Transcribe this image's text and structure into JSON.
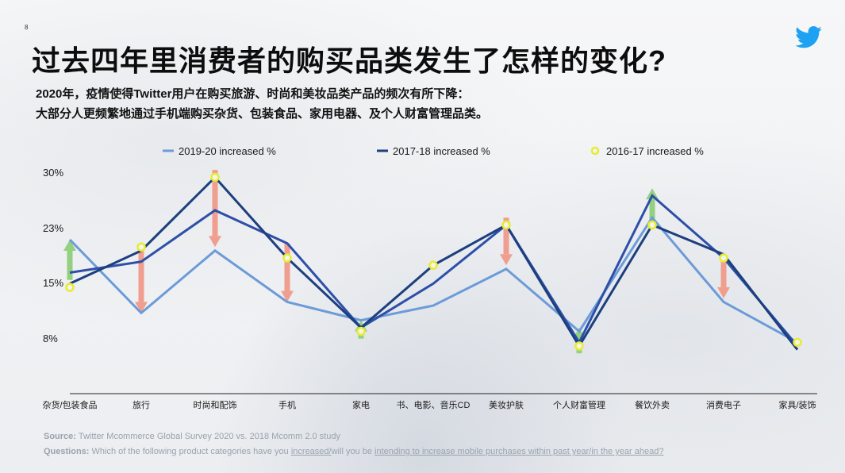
{
  "page_number": "8",
  "title": "过去四年里消费者的购买品类发生了怎样的变化?",
  "subtitle_lines": [
    "2020年，疫情使得Twitter用户在购买旅游、时尚和美妆品类产品的频次有所下降：",
    "大部分人更频繁地通过手机端购买杂货、包装食品、家用电器、及个人财富管理品类。"
  ],
  "logo_icon": "twitter-bird-icon",
  "colors": {
    "series_2019_20": "#6b9bd8",
    "series_2017_18": "#1c3f7e",
    "series_2016_17": "#e8ec2e",
    "mid_line": "#2d4fa8",
    "arrow_up": "#8fd07a",
    "arrow_down": "#f19a8a",
    "brand": "#1da1f2"
  },
  "chart_data": {
    "type": "line",
    "categories": [
      "杂货/包装食品",
      "旅行",
      "时尚和配饰",
      "手机",
      "家电",
      "书、电影、音乐CD",
      "美妆护肤",
      "个人财富管理",
      "餐饮外卖",
      "消费电子",
      "家具/装饰"
    ],
    "y_tick_labels": [
      "30%",
      "23%",
      "15%",
      "8%"
    ],
    "y_ticks": [
      30,
      23,
      15,
      8
    ],
    "ylim": [
      0,
      30
    ],
    "series": [
      {
        "name": "2019-20 increased %",
        "style": "line",
        "values": [
          21,
          11,
          19.5,
          12.5,
          10,
          12,
          17,
          8.5,
          24,
          12.5,
          7
        ]
      },
      {
        "name": "",
        "style": "line",
        "values": [
          16.5,
          18,
          25,
          20.5,
          9,
          15,
          23,
          7,
          27,
          18.5,
          6.5
        ]
      },
      {
        "name": "2017-18 increased %",
        "style": "line",
        "values": [
          15,
          19.5,
          29.5,
          18.5,
          9,
          17.5,
          23,
          6.5,
          23,
          19,
          6
        ]
      },
      {
        "name": "2016-17 increased %",
        "style": "marker",
        "values": [
          14.5,
          20,
          29.5,
          18.5,
          8.5,
          17.5,
          23,
          6.5,
          23,
          18.5,
          7
        ]
      }
    ],
    "arrows": [
      {
        "category": "杂货/包装食品",
        "direction": "up",
        "from": 15.5,
        "to": 21
      },
      {
        "category": "旅行",
        "direction": "down",
        "from": 20,
        "to": 11
      },
      {
        "category": "时尚和配饰",
        "direction": "down",
        "from": 30.5,
        "to": 20
      },
      {
        "category": "手机",
        "direction": "down",
        "from": 20.5,
        "to": 12.5
      },
      {
        "category": "家电",
        "direction": "up",
        "from": 7.5,
        "to": 10
      },
      {
        "category": "美妆护肤",
        "direction": "down",
        "from": 24,
        "to": 17.5
      },
      {
        "category": "个人财富管理",
        "direction": "up",
        "from": 5.5,
        "to": 9
      },
      {
        "category": "餐饮外卖",
        "direction": "up",
        "from": 23.5,
        "to": 28
      },
      {
        "category": "消费电子",
        "direction": "down",
        "from": 19,
        "to": 13
      }
    ],
    "legend_position": "top",
    "grid": false
  },
  "source": {
    "label": "Source:",
    "text": "Twitter Mcommerce Global Survey 2020 vs. 2018 Mcomm 2.0 study"
  },
  "questions": {
    "label": "Questions:",
    "text_pre": "Which of the following product categories have you",
    "text_u1": "increased/",
    "text_mid": "will you be",
    "text_u2": "intending to increase mobile purchases within past year/in the year ahead?"
  }
}
